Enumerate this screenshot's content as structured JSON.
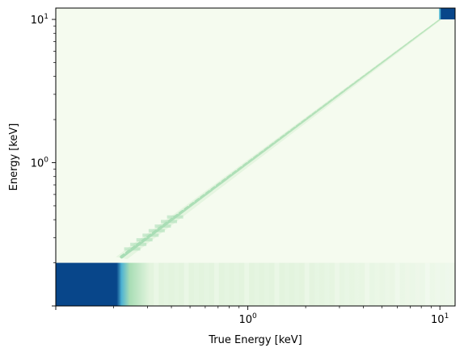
{
  "chart_data": {
    "type": "heatmap",
    "title": "",
    "xlabel": "True Energy [keV]",
    "ylabel": "Energy [keV]",
    "xscale": "log",
    "yscale": "log",
    "xlim": [
      0.1,
      12.0
    ],
    "ylim": [
      0.1,
      12.0
    ],
    "x_ticks": [
      {
        "value": 1,
        "label_base": "10",
        "label_exp": "0"
      },
      {
        "value": 10,
        "label_base": "10",
        "label_exp": "1"
      }
    ],
    "y_ticks": [
      {
        "value": 1,
        "label_base": "10",
        "label_exp": "0"
      },
      {
        "value": 10,
        "label_base": "10",
        "label_exp": "1"
      }
    ],
    "colormap": "GnBu",
    "colors": {
      "background": "#f5fbef",
      "low": "#e3f4de",
      "mid": "#a8ddb5",
      "high": "#4eb3d3",
      "max": "#08468a"
    },
    "features": {
      "diagonal_response": {
        "from_keV": 0.22,
        "to_keV": 10.0
      },
      "low_energy_threshold_keV": 0.2,
      "saturated_block_x_end_keV": 0.22,
      "overflow_block": {
        "x_from_keV": 10.0,
        "y_from_keV": 10.0
      }
    },
    "grid": false,
    "legend": "none"
  }
}
